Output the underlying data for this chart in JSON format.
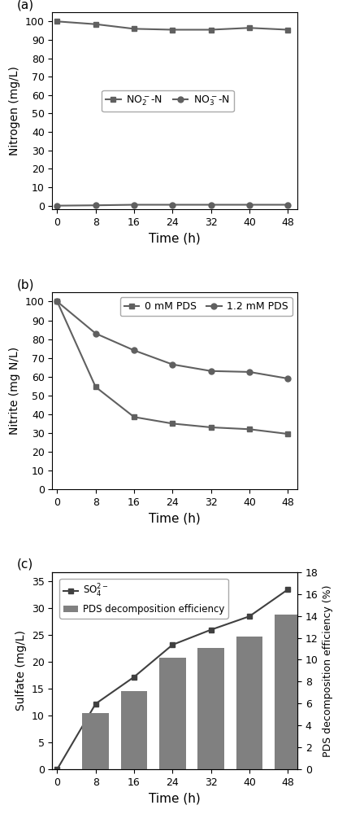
{
  "panel_a": {
    "time": [
      0,
      8,
      16,
      24,
      32,
      40,
      48
    ],
    "no2_n": [
      100,
      98.5,
      96,
      95.5,
      95.5,
      96.5,
      95.5
    ],
    "no3_n": [
      0,
      0.2,
      0.5,
      0.5,
      0.5,
      0.5,
      0.5
    ],
    "ylabel": "Nitrogen (mg/L)",
    "xlabel": "Time (h)",
    "ylim": [
      -2,
      105
    ],
    "yticks": [
      0,
      10,
      20,
      30,
      40,
      50,
      60,
      70,
      80,
      90,
      100
    ],
    "xticks": [
      0,
      8,
      16,
      24,
      32,
      40,
      48
    ],
    "legend_no2": "NO$_2^-$-N",
    "legend_no3": "NO$_3^-$-N",
    "label": "(a)"
  },
  "panel_b": {
    "time": [
      0,
      8,
      16,
      24,
      32,
      40,
      48
    ],
    "pds0": [
      100,
      54.5,
      38.5,
      35,
      33,
      32,
      29.5
    ],
    "pds12": [
      100,
      83,
      74,
      66.5,
      63,
      62.5,
      59
    ],
    "ylabel": "Nitrite (mg N/L)",
    "xlabel": "Time (h)",
    "ylim": [
      0,
      105
    ],
    "yticks": [
      0,
      10,
      20,
      30,
      40,
      50,
      60,
      70,
      80,
      90,
      100
    ],
    "xticks": [
      0,
      8,
      16,
      24,
      32,
      40,
      48
    ],
    "legend_pds0": "0 mM PDS",
    "legend_pds12": "1.2 mM PDS",
    "label": "(b)"
  },
  "panel_c": {
    "time": [
      0,
      8,
      16,
      24,
      32,
      40,
      48
    ],
    "sulfate": [
      0,
      12.2,
      17.2,
      23.2,
      26,
      28.5,
      33.5
    ],
    "bar_time": [
      8,
      16,
      24,
      32,
      40,
      48
    ],
    "bar_pct": [
      5.1,
      7.1,
      10.2,
      11.1,
      12.1,
      14.1
    ],
    "bar_width": 5.5,
    "ylabel_left": "Sulfate (mg/L)",
    "ylabel_right": "PDS decomposition efficiency (%)",
    "xlabel": "Time (h)",
    "ylim_left": [
      0,
      36.75
    ],
    "ylim_right": [
      0,
      18
    ],
    "yticks_left": [
      0,
      5,
      10,
      15,
      20,
      25,
      30,
      35
    ],
    "yticks_right": [
      0,
      2,
      4,
      6,
      8,
      10,
      12,
      14,
      16,
      18
    ],
    "xticks": [
      0,
      8,
      16,
      24,
      32,
      40,
      48
    ],
    "bar_color": "#808080",
    "line_color": "#404040",
    "legend_sulfate": "SO$_4^{2-}$",
    "legend_bar": "PDS decomposition efficiency",
    "label": "(c)"
  },
  "line_color": "#606060",
  "marker_square": "s",
  "marker_circle": "o",
  "marker_size": 5,
  "line_width": 1.5,
  "font_size": 10,
  "label_font_size": 11,
  "tick_font_size": 9,
  "background_color": "#ffffff"
}
